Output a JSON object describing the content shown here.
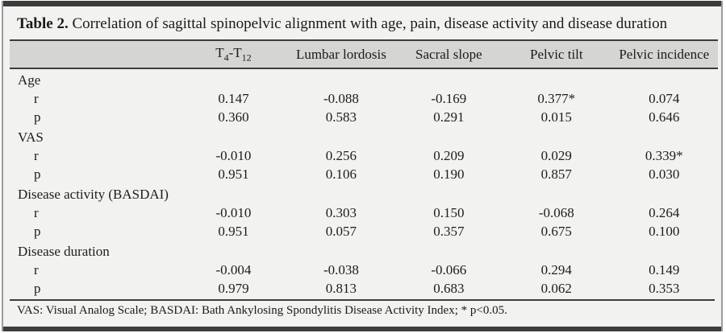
{
  "table": {
    "title": {
      "label": "Table 2.",
      "text": "Correlation of sagittal spinopelvic alignment with age, pain, disease activity and disease duration"
    },
    "header": {
      "col_empty": "",
      "t_col": {
        "base1": "T",
        "sub1": "4",
        "base2": "-T",
        "sub2": "12"
      },
      "cols": [
        "Lumbar lordosis",
        "Sacral slope",
        "Pelvic tilt",
        "Pelvic incidence"
      ]
    },
    "stat_labels": {
      "r": "r",
      "p": "p"
    },
    "sections": [
      {
        "label": "Age",
        "r": [
          "0.147",
          "-0.088",
          "-0.169",
          "0.377*",
          "0.074"
        ],
        "p": [
          "0.360",
          "0.583",
          "0.291",
          "0.015",
          "0.646"
        ]
      },
      {
        "label": "VAS",
        "r": [
          "-0.010",
          "0.256",
          "0.209",
          "0.029",
          "0.339*"
        ],
        "p": [
          "0.951",
          "0.106",
          "0.190",
          "0.857",
          "0.030"
        ]
      },
      {
        "label": "Disease activity (BASDAI)",
        "r": [
          "-0.010",
          "0.303",
          "0.150",
          "-0.068",
          "0.264"
        ],
        "p": [
          "0.951",
          "0.057",
          "0.357",
          "0.675",
          "0.100"
        ]
      },
      {
        "label": "Disease duration",
        "r": [
          "-0.004",
          "-0.038",
          "-0.066",
          "0.294",
          "0.149"
        ],
        "p": [
          "0.979",
          "0.813",
          "0.683",
          "0.062",
          "0.353"
        ]
      }
    ],
    "footnote": "VAS: Visual Analog Scale; BASDAI: Bath Ankylosing Spondylitis Disease Activity Index; * p<0.05.",
    "colors": {
      "page_bg": "#f2f2f0",
      "header_band": "#d5d5d3",
      "rule": "#3c3c3c",
      "text": "#1a1a1a"
    }
  }
}
